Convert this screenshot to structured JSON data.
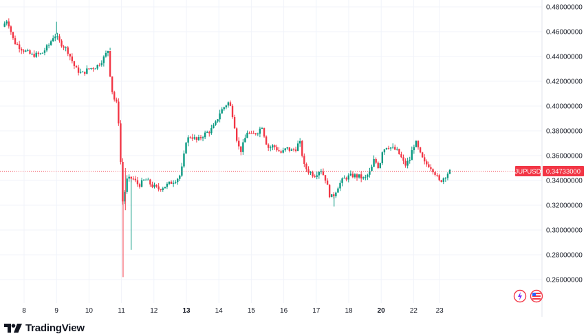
{
  "chart_data": {
    "type": "candlestick",
    "symbol": "JUPUSD",
    "last_price": "0.34733000",
    "ylim": [
      0.25,
      0.48
    ],
    "yticks": [
      "0.48000000",
      "0.46000000",
      "0.44000000",
      "0.42000000",
      "0.40000000",
      "0.38000000",
      "0.36000000",
      "0.34000000",
      "0.32000000",
      "0.30000000",
      "0.28000000",
      "0.26000000"
    ],
    "xticks": [
      {
        "label": "8",
        "day": 8.0,
        "bold": false
      },
      {
        "label": "9",
        "day": 9.0,
        "bold": false
      },
      {
        "label": "10",
        "day": 10.0,
        "bold": false
      },
      {
        "label": "11",
        "day": 11.0,
        "bold": false
      },
      {
        "label": "12",
        "day": 12.0,
        "bold": false
      },
      {
        "label": "13",
        "day": 13.0,
        "bold": true
      },
      {
        "label": "14",
        "day": 14.0,
        "bold": false
      },
      {
        "label": "15",
        "day": 15.0,
        "bold": false
      },
      {
        "label": "16",
        "day": 16.0,
        "bold": false
      },
      {
        "label": "17",
        "day": 17.0,
        "bold": false
      },
      {
        "label": "18",
        "day": 18.0,
        "bold": false
      },
      {
        "label": "20",
        "day": 19.0,
        "bold": true
      },
      {
        "label": "22",
        "day": 20.0,
        "bold": false
      },
      {
        "label": "23",
        "day": 20.8,
        "bold": false
      }
    ],
    "anchors": [
      [
        7.4,
        0.464
      ],
      [
        7.55,
        0.47
      ],
      [
        7.75,
        0.452
      ],
      [
        8.0,
        0.446
      ],
      [
        8.3,
        0.441
      ],
      [
        8.6,
        0.442
      ],
      [
        8.85,
        0.45
      ],
      [
        9.0,
        0.458
      ],
      [
        9.15,
        0.452
      ],
      [
        9.4,
        0.445
      ],
      [
        9.65,
        0.43
      ],
      [
        9.85,
        0.426
      ],
      [
        10.05,
        0.43
      ],
      [
        10.3,
        0.432
      ],
      [
        10.5,
        0.438
      ],
      [
        10.65,
        0.445
      ],
      [
        10.75,
        0.415
      ],
      [
        10.85,
        0.405
      ],
      [
        10.95,
        0.4
      ],
      [
        11.05,
        0.35
      ],
      [
        11.12,
        0.316
      ],
      [
        11.2,
        0.34
      ],
      [
        11.4,
        0.342
      ],
      [
        11.6,
        0.336
      ],
      [
        11.8,
        0.341
      ],
      [
        12.0,
        0.336
      ],
      [
        12.2,
        0.333
      ],
      [
        12.45,
        0.336
      ],
      [
        12.7,
        0.34
      ],
      [
        12.85,
        0.343
      ],
      [
        12.95,
        0.352
      ],
      [
        13.05,
        0.372
      ],
      [
        13.2,
        0.376
      ],
      [
        13.4,
        0.372
      ],
      [
        13.6,
        0.377
      ],
      [
        13.8,
        0.38
      ],
      [
        13.95,
        0.385
      ],
      [
        14.1,
        0.395
      ],
      [
        14.25,
        0.4
      ],
      [
        14.35,
        0.403
      ],
      [
        14.45,
        0.398
      ],
      [
        14.55,
        0.384
      ],
      [
        14.65,
        0.368
      ],
      [
        14.75,
        0.364
      ],
      [
        14.85,
        0.372
      ],
      [
        14.95,
        0.38
      ],
      [
        15.05,
        0.376
      ],
      [
        15.25,
        0.379
      ],
      [
        15.4,
        0.384
      ],
      [
        15.5,
        0.372
      ],
      [
        15.6,
        0.366
      ],
      [
        15.75,
        0.368
      ],
      [
        15.9,
        0.364
      ],
      [
        16.0,
        0.362
      ],
      [
        16.15,
        0.366
      ],
      [
        16.3,
        0.364
      ],
      [
        16.45,
        0.366
      ],
      [
        16.55,
        0.372
      ],
      [
        16.7,
        0.351
      ],
      [
        16.85,
        0.347
      ],
      [
        17.0,
        0.344
      ],
      [
        17.2,
        0.349
      ],
      [
        17.35,
        0.341
      ],
      [
        17.5,
        0.326
      ],
      [
        17.6,
        0.328
      ],
      [
        17.75,
        0.336
      ],
      [
        17.9,
        0.341
      ],
      [
        18.05,
        0.343
      ],
      [
        18.2,
        0.344
      ],
      [
        18.4,
        0.343
      ],
      [
        18.55,
        0.341
      ],
      [
        18.75,
        0.348
      ],
      [
        18.85,
        0.357
      ],
      [
        19.0,
        0.35
      ],
      [
        19.1,
        0.364
      ],
      [
        19.25,
        0.368
      ],
      [
        19.4,
        0.366
      ],
      [
        19.55,
        0.364
      ],
      [
        19.65,
        0.36
      ],
      [
        19.8,
        0.352
      ],
      [
        19.95,
        0.357
      ],
      [
        20.05,
        0.368
      ],
      [
        20.15,
        0.37
      ],
      [
        20.25,
        0.362
      ],
      [
        20.4,
        0.354
      ],
      [
        20.55,
        0.352
      ],
      [
        20.65,
        0.349
      ],
      [
        20.75,
        0.345
      ],
      [
        20.85,
        0.339
      ],
      [
        20.95,
        0.341
      ],
      [
        21.05,
        0.344
      ],
      [
        21.15,
        0.347
      ]
    ],
    "spikes": [
      {
        "day": 11.05,
        "low": 0.262
      },
      {
        "day": 11.12,
        "high": 0.35
      },
      {
        "day": 11.3,
        "low": 0.284
      },
      {
        "day": 9.0,
        "high": 0.468
      },
      {
        "day": 10.65,
        "high": 0.447
      },
      {
        "day": 17.55,
        "low": 0.319
      }
    ],
    "colors": {
      "up": "#089981",
      "down": "#f23645",
      "grid": "#f0f3fa",
      "last_line": "#f23645",
      "text": "#131722"
    }
  },
  "brand": {
    "name": "TradingView"
  }
}
